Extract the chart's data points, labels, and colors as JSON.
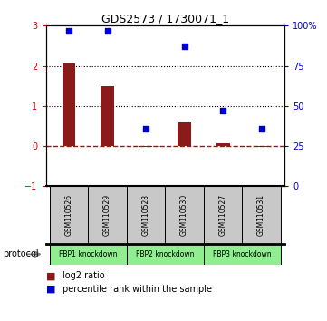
{
  "title": "GDS2573 / 1730071_1",
  "samples": [
    "GSM110526",
    "GSM110529",
    "GSM110528",
    "GSM110530",
    "GSM110527",
    "GSM110531"
  ],
  "log2_ratio": [
    2.05,
    1.5,
    -0.03,
    0.6,
    0.07,
    -0.03
  ],
  "percentile_rank": [
    97,
    97,
    36,
    87,
    47,
    36
  ],
  "left_ylim": [
    -1,
    3
  ],
  "right_ylim": [
    0,
    100
  ],
  "left_yticks": [
    -1,
    0,
    1,
    2,
    3
  ],
  "right_yticks": [
    0,
    25,
    50,
    75,
    100
  ],
  "right_yticklabels": [
    "0",
    "25",
    "50",
    "75",
    "100%"
  ],
  "hline_dotted": [
    1,
    2
  ],
  "hline_dashed_red": 0,
  "bar_color": "#8B1A1A",
  "dot_color": "#0000CC",
  "bar_width": 0.35,
  "legend_red_label": "log2 ratio",
  "legend_blue_label": "percentile rank within the sample",
  "protocol_label": "protocol",
  "sample_box_color": "#C8C8C8",
  "group_box_color": "#90EE90",
  "left_tick_color": "#CC0000",
  "right_tick_color": "#0000CC",
  "group_defs": [
    [
      0,
      1,
      "FBP1 knockdown"
    ],
    [
      2,
      3,
      "FBP2 knockdown"
    ],
    [
      4,
      5,
      "FBP3 knockdown"
    ]
  ]
}
